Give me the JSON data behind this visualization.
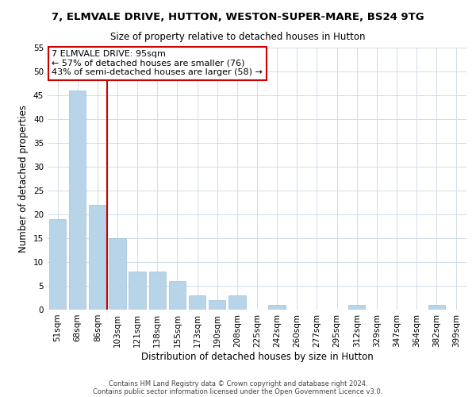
{
  "title": "7, ELMVALE DRIVE, HUTTON, WESTON-SUPER-MARE, BS24 9TG",
  "subtitle": "Size of property relative to detached houses in Hutton",
  "xlabel": "Distribution of detached houses by size in Hutton",
  "ylabel": "Number of detached properties",
  "bar_labels": [
    "51sqm",
    "68sqm",
    "86sqm",
    "103sqm",
    "121sqm",
    "138sqm",
    "155sqm",
    "173sqm",
    "190sqm",
    "208sqm",
    "225sqm",
    "242sqm",
    "260sqm",
    "277sqm",
    "295sqm",
    "312sqm",
    "329sqm",
    "347sqm",
    "364sqm",
    "382sqm",
    "399sqm"
  ],
  "bar_values": [
    19,
    46,
    22,
    15,
    8,
    8,
    6,
    3,
    2,
    3,
    0,
    1,
    0,
    0,
    0,
    1,
    0,
    0,
    0,
    1,
    0
  ],
  "bar_color": "#b8d4e8",
  "bar_edge_color": "#a0c0d8",
  "vline_color": "#cc0000",
  "annotation_title": "7 ELMVALE DRIVE: 95sqm",
  "annotation_line1": "← 57% of detached houses are smaller (76)",
  "annotation_line2": "43% of semi-detached houses are larger (58) →",
  "annotation_box_color": "#ffffff",
  "annotation_box_edge": "#cc0000",
  "ylim": [
    0,
    55
  ],
  "yticks": [
    0,
    5,
    10,
    15,
    20,
    25,
    30,
    35,
    40,
    45,
    50,
    55
  ],
  "footer1": "Contains HM Land Registry data © Crown copyright and database right 2024.",
  "footer2": "Contains public sector information licensed under the Open Government Licence v3.0.",
  "background_color": "#ffffff",
  "grid_color": "#d0dce8",
  "title_fontsize": 9.5,
  "subtitle_fontsize": 8.5,
  "xlabel_fontsize": 8.5,
  "ylabel_fontsize": 8.5,
  "tick_fontsize": 7.5,
  "footer_fontsize": 6.0,
  "footer_color": "#444444"
}
